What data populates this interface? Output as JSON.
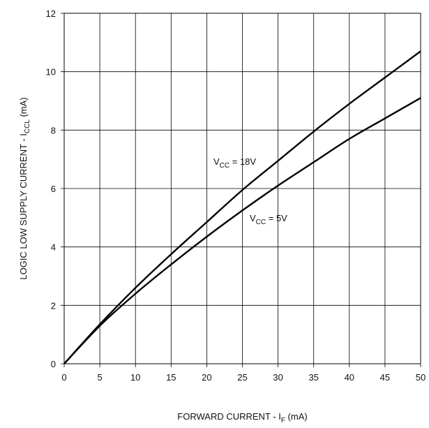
{
  "chart_data": {
    "type": "line",
    "title": "",
    "xlabel": {
      "main": "FORWARD CURRENT - I",
      "sub": "F",
      "unit": " (mA)"
    },
    "ylabel": {
      "main": "LOGIC LOW SUPPLY CURRENT - I",
      "sub": "CCL",
      "unit": " (mA)"
    },
    "xlim": [
      0,
      50
    ],
    "ylim": [
      0,
      12
    ],
    "xticks": [
      0,
      5,
      10,
      15,
      20,
      25,
      30,
      35,
      40,
      45,
      50
    ],
    "yticks": [
      0,
      2,
      4,
      6,
      8,
      10,
      12
    ],
    "grid": true,
    "series": [
      {
        "name": {
          "main": "V",
          "sub": "CC",
          "rest": " = 18V"
        },
        "x": [
          0,
          5,
          10,
          15,
          20,
          25,
          30,
          35,
          40,
          45,
          50
        ],
        "y": [
          0,
          1.35,
          2.6,
          3.75,
          4.85,
          5.95,
          6.95,
          7.95,
          8.9,
          9.8,
          10.7
        ]
      },
      {
        "name": {
          "main": "V",
          "sub": "CC",
          "rest": " = 5V"
        },
        "x": [
          0,
          5,
          10,
          15,
          20,
          25,
          30,
          35,
          40,
          45,
          50
        ],
        "y": [
          0,
          1.3,
          2.4,
          3.4,
          4.35,
          5.25,
          6.1,
          6.9,
          7.7,
          8.4,
          9.1
        ]
      }
    ]
  }
}
